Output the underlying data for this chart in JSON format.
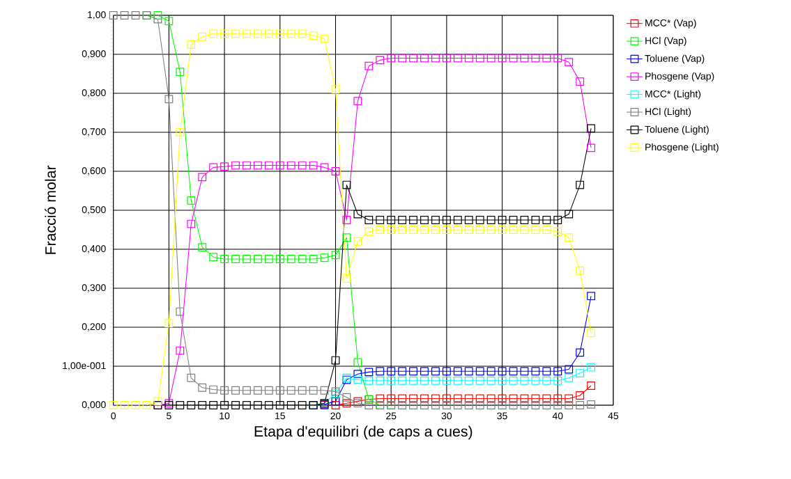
{
  "chart_data": {
    "type": "line",
    "xlabel": "Etapa d'equilibri (de caps a cues)",
    "ylabel": "Fracció molar",
    "x": [
      0,
      1,
      2,
      3,
      4,
      5,
      6,
      7,
      8,
      9,
      10,
      11,
      12,
      13,
      14,
      15,
      16,
      17,
      18,
      19,
      20,
      21,
      22,
      23,
      24,
      25,
      26,
      27,
      28,
      29,
      30,
      31,
      32,
      33,
      34,
      35,
      36,
      37,
      38,
      39,
      40,
      41,
      42,
      43
    ],
    "series": [
      {
        "name": "MCC* (Vap)",
        "color": "#ff0000",
        "values": [
          null,
          null,
          null,
          null,
          null,
          null,
          null,
          null,
          null,
          null,
          null,
          null,
          null,
          null,
          null,
          null,
          null,
          null,
          0,
          0,
          0,
          0.005,
          0.01,
          0.015,
          0.017,
          0.017,
          0.017,
          0.017,
          0.017,
          0.017,
          0.017,
          0.017,
          0.017,
          0.017,
          0.017,
          0.017,
          0.017,
          0.017,
          0.017,
          0.017,
          0.017,
          0.017,
          0.025,
          0.05
        ]
      },
      {
        "name": "HCl (Vap)",
        "color": "#00ff00",
        "values": [
          null,
          null,
          null,
          1.0,
          1.0,
          0.985,
          0.855,
          0.525,
          0.405,
          0.38,
          0.375,
          0.375,
          0.375,
          0.375,
          0.375,
          0.375,
          0.375,
          0.375,
          0.375,
          0.378,
          0.385,
          0.43,
          0.11,
          0.015,
          0,
          0,
          null,
          null,
          null,
          null,
          null,
          null,
          null,
          null,
          null,
          null,
          null,
          null,
          null,
          null,
          null,
          null,
          null,
          null
        ]
      },
      {
        "name": "Toluene (Vap)",
        "color": "#0000ff",
        "values": [
          null,
          null,
          null,
          null,
          null,
          null,
          null,
          null,
          null,
          null,
          null,
          null,
          null,
          null,
          null,
          null,
          null,
          null,
          0,
          0.002,
          0.01,
          0.065,
          0.08,
          0.085,
          0.087,
          0.087,
          0.087,
          0.087,
          0.087,
          0.087,
          0.087,
          0.087,
          0.087,
          0.087,
          0.087,
          0.087,
          0.087,
          0.087,
          0.087,
          0.087,
          0.087,
          0.092,
          0.135,
          0.28
        ]
      },
      {
        "name": "Phosgene (Vap)",
        "color": "#ff00ff",
        "values": [
          null,
          null,
          null,
          null,
          0,
          0.005,
          0.14,
          0.465,
          0.585,
          0.61,
          0.612,
          0.615,
          0.615,
          0.615,
          0.615,
          0.615,
          0.615,
          0.615,
          0.615,
          0.61,
          0.6,
          0.475,
          0.78,
          0.87,
          0.885,
          0.89,
          0.89,
          0.89,
          0.89,
          0.89,
          0.89,
          0.89,
          0.89,
          0.89,
          0.89,
          0.89,
          0.89,
          0.89,
          0.89,
          0.89,
          0.89,
          0.88,
          0.83,
          0.66
        ]
      },
      {
        "name": "MCC* (Light)",
        "color": "#00ffff",
        "values": [
          null,
          null,
          null,
          null,
          null,
          null,
          null,
          null,
          null,
          null,
          null,
          null,
          null,
          null,
          null,
          null,
          null,
          null,
          0,
          0.005,
          0.03,
          0.07,
          0.065,
          0.063,
          0.063,
          0.063,
          0.063,
          0.063,
          0.063,
          0.063,
          0.063,
          0.063,
          0.063,
          0.063,
          0.063,
          0.063,
          0.063,
          0.063,
          0.063,
          0.063,
          0.063,
          0.07,
          0.082,
          0.097
        ]
      },
      {
        "name": "HCl (Light)",
        "color": "#808080",
        "values": [
          1.0,
          1.0,
          1.0,
          1.0,
          0.99,
          0.785,
          0.24,
          0.07,
          0.045,
          0.04,
          0.038,
          0.038,
          0.038,
          0.038,
          0.038,
          0.038,
          0.038,
          0.038,
          0.038,
          0.038,
          0.035,
          0.02,
          0.005,
          0,
          0,
          0,
          0,
          0,
          0,
          0,
          0,
          0,
          0,
          0,
          0,
          0,
          0,
          0,
          0,
          0,
          0,
          0,
          0,
          0.002
        ]
      },
      {
        "name": "Toluene (Light)",
        "color": "#000000",
        "values": [
          null,
          null,
          null,
          null,
          0,
          0,
          0,
          0,
          0,
          0,
          0,
          0,
          0,
          0,
          0,
          0,
          0,
          0,
          0,
          0.005,
          0.115,
          0.565,
          0.49,
          0.475,
          0.475,
          0.475,
          0.475,
          0.475,
          0.475,
          0.475,
          0.475,
          0.475,
          0.475,
          0.475,
          0.475,
          0.475,
          0.475,
          0.475,
          0.475,
          0.475,
          0.475,
          0.49,
          0.565,
          0.71
        ]
      },
      {
        "name": "Phosgene (Light)",
        "color": "#ffff00",
        "values": [
          0,
          0,
          0,
          0,
          0.01,
          0.21,
          0.7,
          0.925,
          0.945,
          0.953,
          0.953,
          0.953,
          0.953,
          0.953,
          0.953,
          0.953,
          0.953,
          0.953,
          0.948,
          0.94,
          0.81,
          0.325,
          0.42,
          0.445,
          0.45,
          0.45,
          0.45,
          0.45,
          0.45,
          0.45,
          0.45,
          0.45,
          0.45,
          0.45,
          0.45,
          0.45,
          0.45,
          0.45,
          0.45,
          0.45,
          0.445,
          0.43,
          0.345,
          0.185
        ]
      }
    ],
    "xlim": [
      0,
      45
    ],
    "xticks": [
      0,
      5,
      10,
      15,
      20,
      25,
      30,
      35,
      40,
      45
    ],
    "ylim": [
      0,
      1
    ],
    "yticks": [
      {
        "value": 0,
        "label": "0,000"
      },
      {
        "value": 0.1,
        "label": "1,00e-001"
      },
      {
        "value": 0.2,
        "label": "0,200"
      },
      {
        "value": 0.3,
        "label": "0,300"
      },
      {
        "value": 0.4,
        "label": "0,400"
      },
      {
        "value": 0.5,
        "label": "0,500"
      },
      {
        "value": 0.6,
        "label": "0,600"
      },
      {
        "value": 0.7,
        "label": "0,700"
      },
      {
        "value": 0.8,
        "label": "0,800"
      },
      {
        "value": 0.9,
        "label": "0,900"
      },
      {
        "value": 1,
        "label": "1,00"
      }
    ],
    "grid": true,
    "legend": "right",
    "marker": "square",
    "line_style": "solid"
  }
}
